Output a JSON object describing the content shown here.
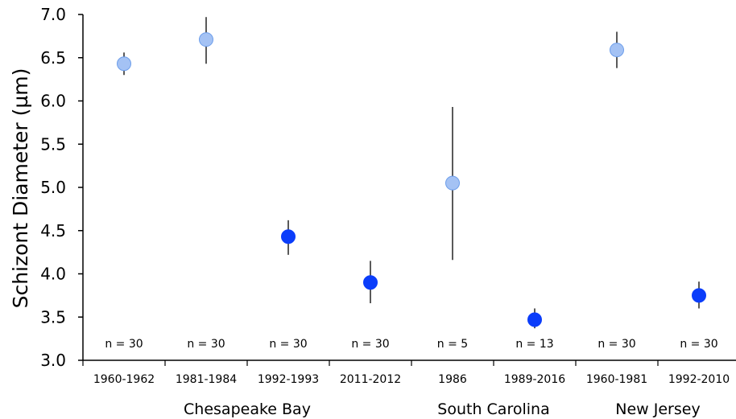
{
  "chart_data": {
    "type": "scatter",
    "ylabel": "Schizont Diameter (µm)",
    "ylim": [
      3.0,
      7.0
    ],
    "yticks": [
      "3.0",
      "3.5",
      "4.0",
      "4.5",
      "5.0",
      "5.5",
      "6.0",
      "6.5",
      "7.0"
    ],
    "grid": false,
    "legend": "none",
    "colors": {
      "light": "#a4c2f4",
      "light_edge": "#6d9eeb",
      "dark": "#0b3dfa",
      "error_bar": "#000000"
    },
    "categories": [
      "1960-1962",
      "1981-1984",
      "1992-1993",
      "2011-2012",
      "1986",
      "1989-2016",
      "1960-1981",
      "1992-2010"
    ],
    "points": [
      {
        "category": "1960-1962",
        "y": 6.43,
        "err_low": 6.3,
        "err_high": 6.56,
        "n": "n = 30",
        "style": "light"
      },
      {
        "category": "1981-1984",
        "y": 6.71,
        "err_low": 6.43,
        "err_high": 6.97,
        "n": "n = 30",
        "style": "light"
      },
      {
        "category": "1992-1993",
        "y": 4.43,
        "err_low": 4.22,
        "err_high": 4.62,
        "n": "n = 30",
        "style": "dark"
      },
      {
        "category": "2011-2012",
        "y": 3.9,
        "err_low": 3.66,
        "err_high": 4.15,
        "n": "n = 30",
        "style": "dark"
      },
      {
        "category": "1986",
        "y": 5.05,
        "err_low": 4.16,
        "err_high": 5.93,
        "n": "n = 5",
        "style": "light"
      },
      {
        "category": "1989-2016",
        "y": 3.47,
        "err_low": 3.37,
        "err_high": 3.6,
        "n": "n = 13",
        "style": "dark"
      },
      {
        "category": "1960-1981",
        "y": 6.59,
        "err_low": 6.38,
        "err_high": 6.8,
        "n": "n = 30",
        "style": "light"
      },
      {
        "category": "1992-2010",
        "y": 3.75,
        "err_low": 3.6,
        "err_high": 3.91,
        "n": "n = 30",
        "style": "dark"
      }
    ],
    "groups": [
      {
        "label": "Chesapeake Bay",
        "categories": [
          "1960-1962",
          "1981-1984",
          "1992-1993",
          "2011-2012"
        ]
      },
      {
        "label": "South Carolina",
        "categories": [
          "1986",
          "1989-2016"
        ]
      },
      {
        "label": "New Jersey",
        "categories": [
          "1960-1981",
          "1992-2010"
        ]
      }
    ]
  }
}
